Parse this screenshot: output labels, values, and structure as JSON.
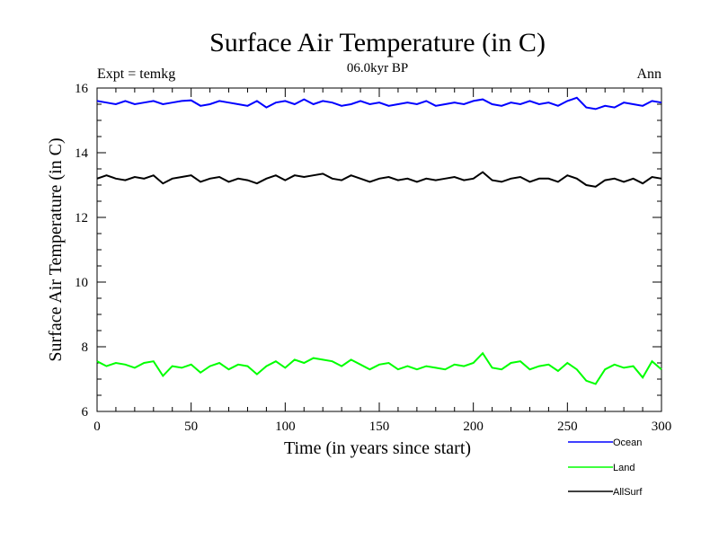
{
  "chart_data": {
    "type": "line",
    "title": "Surface Air Temperature (in C)",
    "subtitle": "06.0kyr BP",
    "left_label": "Expt = temkg",
    "right_label": "Ann",
    "xlabel": "Time (in years since start)",
    "ylabel": "Surface Air Temperature (in C)",
    "xlim": [
      0,
      300
    ],
    "ylim": [
      6,
      16
    ],
    "xticks": [
      0,
      50,
      100,
      150,
      200,
      250,
      300
    ],
    "yticks": [
      6,
      8,
      10,
      12,
      14,
      16
    ],
    "grid": false,
    "legend_position": "bottom-right below plot",
    "series": [
      {
        "name": "Ocean",
        "color": "#0000ff",
        "values": [
          15.6,
          15.55,
          15.5,
          15.6,
          15.5,
          15.55,
          15.6,
          15.5,
          15.55,
          15.6,
          15.62,
          15.45,
          15.5,
          15.6,
          15.55,
          15.5,
          15.45,
          15.6,
          15.4,
          15.55,
          15.6,
          15.5,
          15.65,
          15.5,
          15.6,
          15.55,
          15.45,
          15.5,
          15.6,
          15.5,
          15.55,
          15.45,
          15.5,
          15.55,
          15.5,
          15.6,
          15.45,
          15.5,
          15.55,
          15.5,
          15.6,
          15.65,
          15.5,
          15.45,
          15.55,
          15.5,
          15.6,
          15.5,
          15.55,
          15.45,
          15.6,
          15.7,
          15.4,
          15.35,
          15.45,
          15.4,
          15.55,
          15.5,
          15.45,
          15.6,
          15.55
        ]
      },
      {
        "name": "Land",
        "color": "#00ff00",
        "values": [
          7.55,
          7.4,
          7.5,
          7.45,
          7.35,
          7.5,
          7.55,
          7.1,
          7.4,
          7.35,
          7.45,
          7.2,
          7.4,
          7.5,
          7.3,
          7.45,
          7.4,
          7.15,
          7.4,
          7.55,
          7.35,
          7.6,
          7.5,
          7.65,
          7.6,
          7.55,
          7.4,
          7.6,
          7.45,
          7.3,
          7.45,
          7.5,
          7.3,
          7.4,
          7.3,
          7.4,
          7.35,
          7.3,
          7.45,
          7.4,
          7.5,
          7.8,
          7.35,
          7.3,
          7.5,
          7.55,
          7.3,
          7.4,
          7.45,
          7.25,
          7.5,
          7.3,
          6.95,
          6.85,
          7.3,
          7.45,
          7.35,
          7.4,
          7.05,
          7.55,
          7.3
        ]
      },
      {
        "name": "AllSurf",
        "color": "#000000",
        "values": [
          13.2,
          13.3,
          13.2,
          13.15,
          13.25,
          13.2,
          13.3,
          13.05,
          13.2,
          13.25,
          13.3,
          13.1,
          13.2,
          13.25,
          13.1,
          13.2,
          13.15,
          13.05,
          13.2,
          13.3,
          13.15,
          13.3,
          13.25,
          13.3,
          13.35,
          13.2,
          13.15,
          13.3,
          13.2,
          13.1,
          13.2,
          13.25,
          13.15,
          13.2,
          13.1,
          13.2,
          13.15,
          13.2,
          13.25,
          13.15,
          13.2,
          13.4,
          13.15,
          13.1,
          13.2,
          13.25,
          13.1,
          13.2,
          13.2,
          13.1,
          13.3,
          13.2,
          13.0,
          12.95,
          13.15,
          13.2,
          13.1,
          13.2,
          13.05,
          13.25,
          13.2
        ]
      }
    ]
  }
}
